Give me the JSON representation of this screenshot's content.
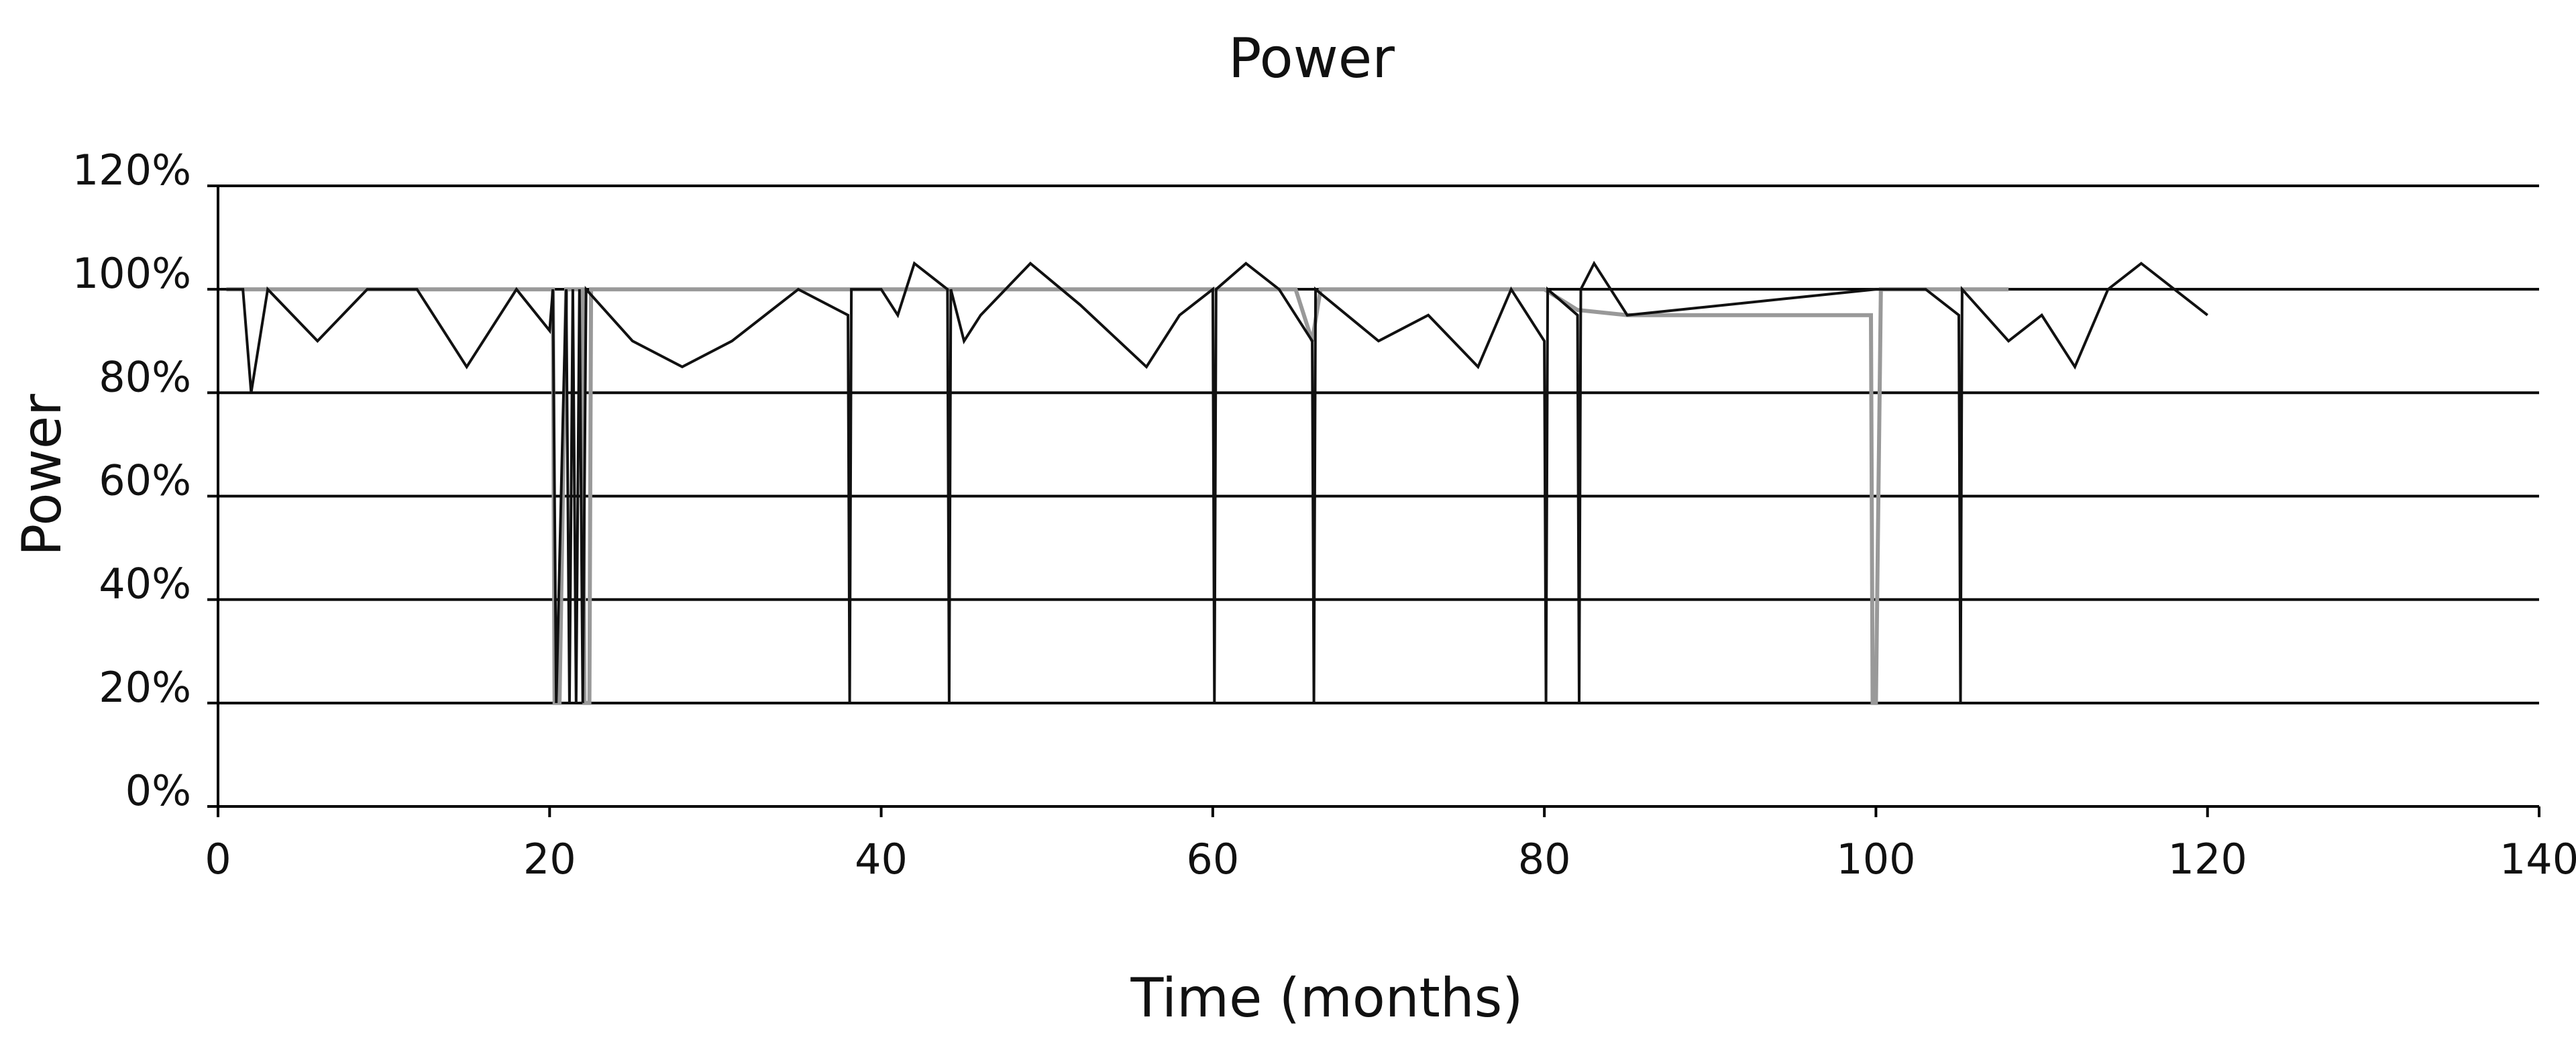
{
  "chart_data": {
    "type": "line",
    "title": "Power",
    "xlabel": "Time (months)",
    "ylabel": "Power",
    "xlim": [
      0,
      140
    ],
    "ylim": [
      0,
      120
    ],
    "x_ticks": [
      0,
      20,
      40,
      60,
      80,
      100,
      120,
      140
    ],
    "y_ticks": [
      0,
      20,
      40,
      60,
      80,
      100,
      120
    ],
    "y_tick_labels": [
      "0%",
      "20%",
      "40%",
      "60%",
      "80%",
      "100%",
      "120%"
    ],
    "grid": "horizontal",
    "legend": "none",
    "series": [
      {
        "color": "#999999",
        "points": [
          [
            0.5,
            100
          ],
          [
            2,
            100
          ],
          [
            4,
            100
          ],
          [
            6,
            100
          ],
          [
            8,
            100
          ],
          [
            10,
            100
          ],
          [
            12,
            100
          ],
          [
            14,
            100
          ],
          [
            16,
            100
          ],
          [
            18,
            100
          ],
          [
            20.2,
            100
          ],
          [
            20.3,
            20
          ],
          [
            20.6,
            20
          ],
          [
            21,
            100
          ],
          [
            22,
            100
          ],
          [
            22.1,
            20
          ],
          [
            22.4,
            20
          ],
          [
            22.5,
            100
          ],
          [
            25,
            100
          ],
          [
            30,
            100
          ],
          [
            35,
            100
          ],
          [
            38,
            100
          ],
          [
            40,
            100
          ],
          [
            45,
            100
          ],
          [
            50,
            100
          ],
          [
            55,
            100
          ],
          [
            60,
            100
          ],
          [
            62,
            100
          ],
          [
            65,
            100
          ],
          [
            66,
            90
          ],
          [
            66.5,
            100
          ],
          [
            70,
            100
          ],
          [
            75,
            100
          ],
          [
            80,
            100
          ],
          [
            82,
            96
          ],
          [
            85,
            95
          ],
          [
            90,
            95
          ],
          [
            95,
            95
          ],
          [
            99.7,
            95
          ],
          [
            99.8,
            20
          ],
          [
            100,
            20
          ],
          [
            100.3,
            100
          ],
          [
            102,
            100
          ],
          [
            105,
            100
          ],
          [
            108,
            100
          ]
        ]
      },
      {
        "color": "#111111",
        "points": [
          [
            0.5,
            100
          ],
          [
            1.5,
            100
          ],
          [
            2,
            80
          ],
          [
            3,
            100
          ],
          [
            6,
            90
          ],
          [
            9,
            100
          ],
          [
            12,
            100
          ],
          [
            15,
            85
          ],
          [
            18,
            100
          ],
          [
            20,
            92
          ],
          [
            20.2,
            100
          ],
          [
            20.4,
            20
          ],
          [
            20.8,
            75
          ],
          [
            21,
            100
          ],
          [
            21.2,
            20
          ],
          [
            21.4,
            100
          ],
          [
            21.6,
            20
          ],
          [
            21.8,
            100
          ],
          [
            22,
            20
          ],
          [
            22.2,
            100
          ],
          [
            25,
            90
          ],
          [
            28,
            85
          ],
          [
            31,
            90
          ],
          [
            35,
            100
          ],
          [
            38,
            95
          ],
          [
            38.1,
            20
          ],
          [
            38.2,
            100
          ],
          [
            40,
            100
          ],
          [
            41,
            95
          ],
          [
            42,
            105
          ],
          [
            44,
            100
          ],
          [
            44.1,
            20
          ],
          [
            44.2,
            100
          ],
          [
            45,
            90
          ],
          [
            46,
            95
          ],
          [
            49,
            105
          ],
          [
            52,
            97
          ],
          [
            56,
            85
          ],
          [
            58,
            95
          ],
          [
            60,
            100
          ],
          [
            60.1,
            20
          ],
          [
            60.2,
            100
          ],
          [
            62,
            105
          ],
          [
            64,
            100
          ],
          [
            66,
            90
          ],
          [
            66.1,
            20
          ],
          [
            66.2,
            100
          ],
          [
            70,
            90
          ],
          [
            73,
            95
          ],
          [
            76,
            85
          ],
          [
            78,
            100
          ],
          [
            80,
            90
          ],
          [
            80.1,
            20
          ],
          [
            80.2,
            100
          ],
          [
            82,
            95
          ],
          [
            82.1,
            20
          ],
          [
            82.2,
            100
          ],
          [
            83,
            105
          ],
          [
            85,
            95
          ],
          [
            100,
            100
          ],
          [
            103,
            100
          ],
          [
            105,
            95
          ],
          [
            105.1,
            20
          ],
          [
            105.2,
            100
          ],
          [
            108,
            90
          ],
          [
            110,
            95
          ],
          [
            112,
            85
          ],
          [
            114,
            100
          ],
          [
            116,
            105
          ],
          [
            118,
            100
          ],
          [
            120,
            95
          ]
        ]
      }
    ]
  }
}
